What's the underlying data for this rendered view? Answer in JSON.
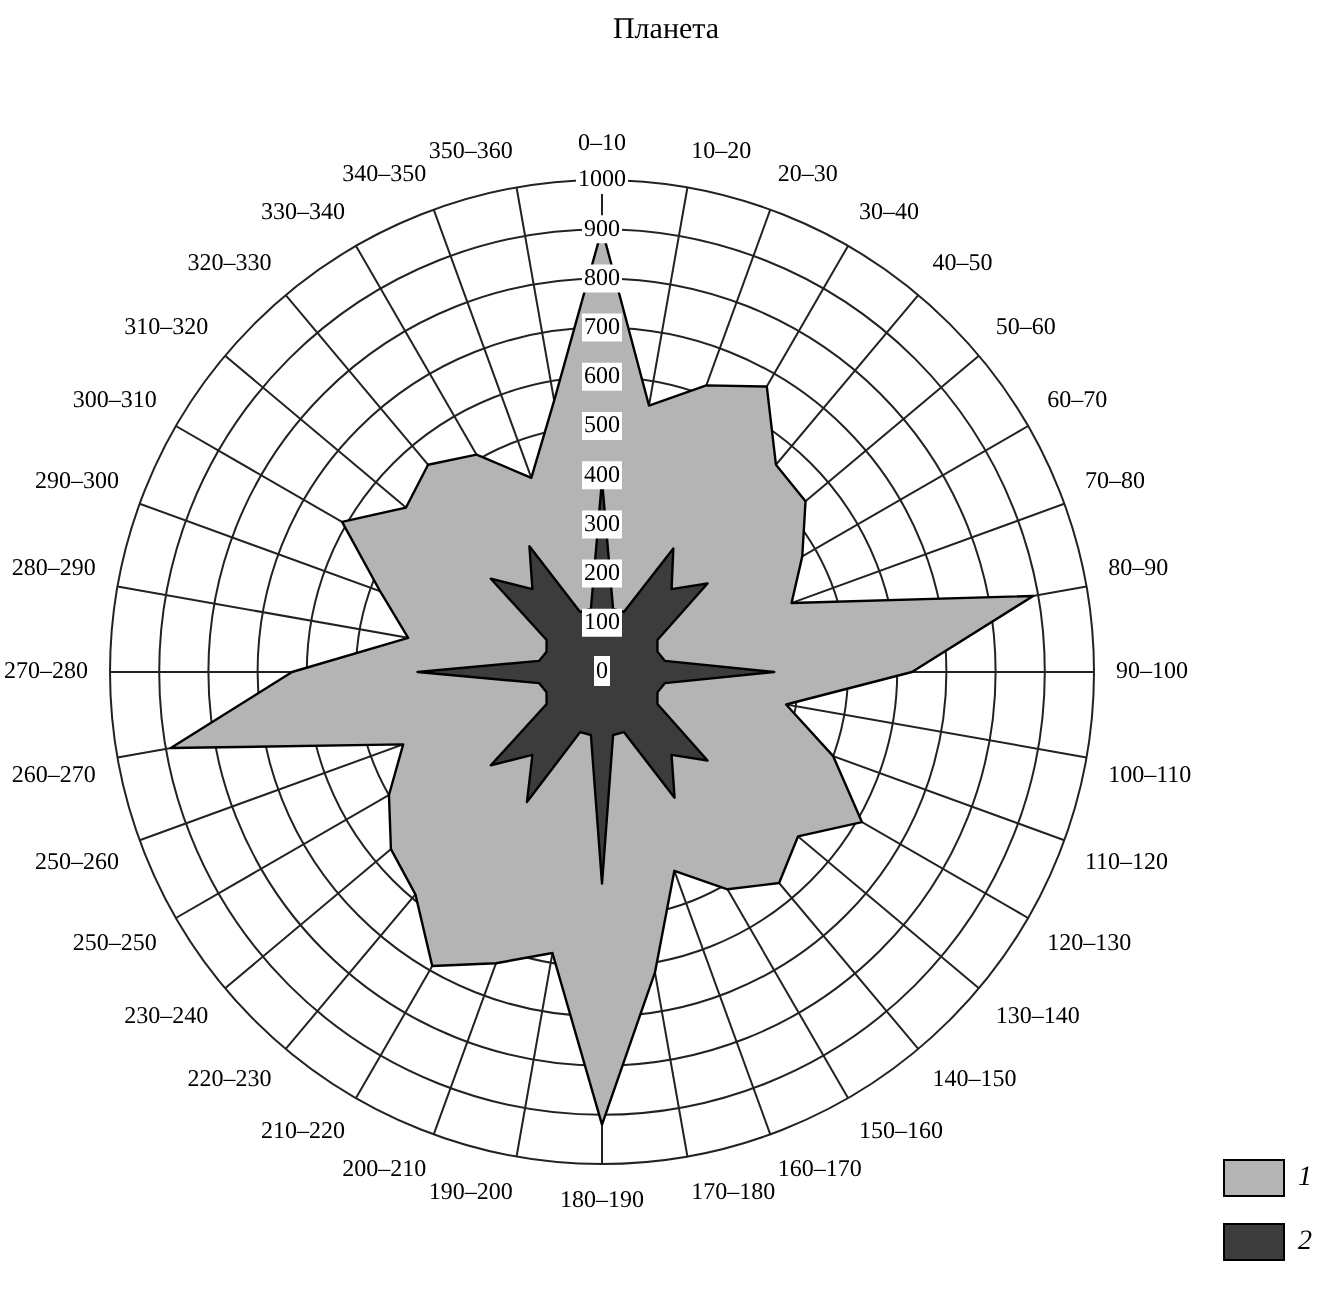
{
  "chart_data": {
    "type": "radar",
    "title": "Планета",
    "categories": [
      "0–10",
      "10–20",
      "20–30",
      "30–40",
      "40–50",
      "50–60",
      "60–70",
      "70–80",
      "80–90",
      "90–100",
      "100–110",
      "110–120",
      "120–130",
      "130–140",
      "140–150",
      "150–160",
      "160–170",
      "170–180",
      "180–190",
      "190–200",
      "200–210",
      "210–220",
      "220–230",
      "230–240",
      "250–250",
      "250–260",
      "260–270",
      "270–280",
      "280–290",
      "290–300",
      "300–310",
      "310–320",
      "320–330",
      "330–340",
      "340–350",
      "350–360"
    ],
    "series": [
      {
        "name": "1",
        "color": "#b4b4b4",
        "values": [
          900,
          550,
          620,
          670,
          550,
          540,
          470,
          410,
          890,
          630,
          380,
          500,
          610,
          520,
          560,
          510,
          430,
          620,
          920,
          580,
          630,
          690,
          590,
          560,
          500,
          430,
          890,
          630,
          400,
          480,
          610,
          520,
          550,
          510,
          420,
          560
        ]
      },
      {
        "name": "2",
        "color": "#3c3c3c",
        "values": [
          390,
          130,
          130,
          290,
          220,
          280,
          130,
          120,
          130,
          350,
          130,
          120,
          130,
          280,
          220,
          295,
          130,
          130,
          430,
          130,
          130,
          305,
          220,
          295,
          130,
          120,
          130,
          375,
          130,
          120,
          130,
          295,
          220,
          295,
          130,
          130
        ]
      }
    ],
    "ylim": [
      0,
      1000
    ],
    "yticks": [
      0,
      100,
      200,
      300,
      400,
      500,
      600,
      700,
      800,
      900,
      1000
    ],
    "grid": true,
    "legend": "bottom right",
    "marker": "none"
  }
}
